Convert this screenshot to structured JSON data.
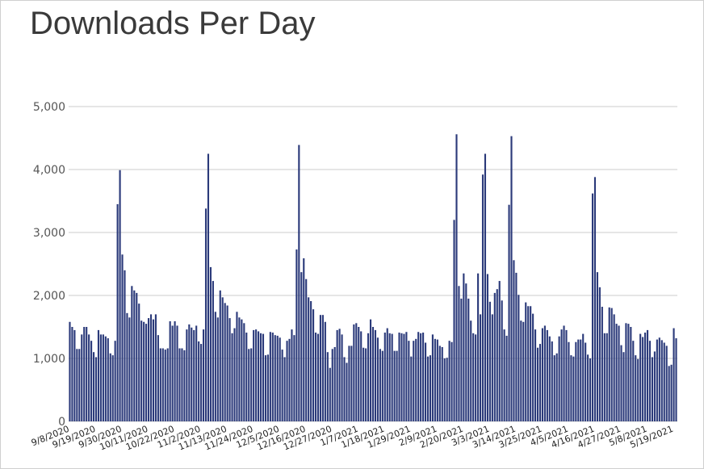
{
  "chart_data": {
    "type": "bar",
    "title": "Downloads Per Day",
    "xlabel": "",
    "ylabel": "",
    "ylim": [
      0,
      5000
    ],
    "yticks": [
      "0",
      "1,000",
      "2,000",
      "3,000",
      "4,000",
      "5,000"
    ],
    "ytick_values": [
      0,
      1000,
      2000,
      3000,
      4000,
      5000
    ],
    "grid": true,
    "start_date": "9/8/2020",
    "xtick_labels": [
      "9/8/2020",
      "9/19/2020",
      "9/30/2020",
      "10/11/2020",
      "10/22/2020",
      "11/2/2020",
      "11/13/2020",
      "11/24/2020",
      "12/5/2020",
      "12/16/2020",
      "12/27/2020",
      "1/7/2021",
      "1/18/2021",
      "1/29/2021",
      "2/9/2021",
      "2/20/2021",
      "3/3/2021",
      "3/14/2021",
      "3/25/2021",
      "4/5/2021",
      "4/16/2021",
      "4/27/2021",
      "5/8/2021",
      "5/19/2021"
    ],
    "bar_color": "#2b3a7a",
    "values": [
      1580,
      1500,
      1450,
      1150,
      1150,
      1380,
      1500,
      1500,
      1380,
      1280,
      1100,
      1020,
      1450,
      1380,
      1380,
      1350,
      1320,
      1080,
      1050,
      1280,
      3450,
      3990,
      2650,
      2400,
      1720,
      1650,
      2150,
      2080,
      2040,
      1870,
      1600,
      1580,
      1550,
      1640,
      1700,
      1620,
      1700,
      1370,
      1160,
      1160,
      1140,
      1160,
      1590,
      1520,
      1590,
      1520,
      1160,
      1160,
      1130,
      1460,
      1540,
      1490,
      1450,
      1520,
      1270,
      1230,
      1460,
      3380,
      4250,
      2450,
      2230,
      1740,
      1650,
      2080,
      1970,
      1880,
      1840,
      1640,
      1400,
      1480,
      1740,
      1650,
      1620,
      1560,
      1410,
      1150,
      1160,
      1450,
      1460,
      1430,
      1400,
      1390,
      1050,
      1060,
      1420,
      1410,
      1370,
      1360,
      1330,
      1140,
      1020,
      1280,
      1310,
      1460,
      1370,
      2730,
      4390,
      2370,
      2590,
      2260,
      1970,
      1910,
      1780,
      1410,
      1390,
      1690,
      1690,
      1580,
      1100,
      850,
      1150,
      1180,
      1450,
      1470,
      1380,
      1020,
      930,
      1200,
      1200,
      1540,
      1560,
      1500,
      1430,
      1170,
      1160,
      1400,
      1620,
      1500,
      1450,
      1330,
      1150,
      1120,
      1410,
      1480,
      1400,
      1390,
      1120,
      1120,
      1410,
      1400,
      1390,
      1420,
      1280,
      1030,
      1280,
      1310,
      1420,
      1400,
      1410,
      1250,
      1030,
      1050,
      1380,
      1310,
      1300,
      1200,
      1180,
      1000,
      1010,
      1280,
      1260,
      3200,
      4560,
      2150,
      1950,
      2350,
      2190,
      1950,
      1600,
      1400,
      1380,
      2350,
      1700,
      3920,
      4250,
      2340,
      1900,
      1700,
      2040,
      2100,
      2230,
      1920,
      1460,
      1360,
      3440,
      4530,
      2560,
      2360,
      2010,
      1600,
      1580,
      1890,
      1830,
      1830,
      1710,
      1460,
      1170,
      1230,
      1480,
      1520,
      1450,
      1350,
      1270,
      1050,
      1080,
      1350,
      1460,
      1520,
      1450,
      1260,
      1050,
      1030,
      1260,
      1300,
      1300,
      1390,
      1250,
      1060,
      1000,
      3620,
      3880,
      2370,
      2130,
      1820,
      1400,
      1400,
      1810,
      1800,
      1700,
      1550,
      1520,
      1210,
      1100,
      1560,
      1550,
      1500,
      1280,
      1050,
      990,
      1390,
      1340,
      1410,
      1450,
      1280,
      1020,
      1110,
      1300,
      1330,
      1290,
      1250,
      1200,
      880,
      900,
      1480,
      1320
    ]
  }
}
